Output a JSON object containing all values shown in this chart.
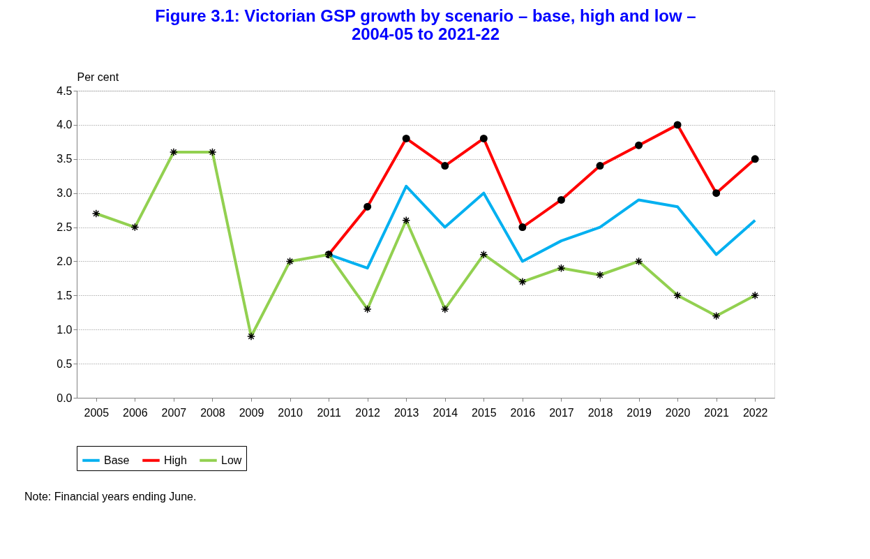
{
  "chart_data": {
    "type": "line",
    "title": "Figure 3.1:  Victorian GSP growth by scenario – base, high and low –\n2004-05 to 2021-22",
    "ylabel": "Per cent",
    "categories": [
      "2005",
      "2006",
      "2007",
      "2008",
      "2009",
      "2010",
      "2011",
      "2012",
      "2013",
      "2014",
      "2015",
      "2016",
      "2017",
      "2018",
      "2019",
      "2020",
      "2021",
      "2022"
    ],
    "series": [
      {
        "name": "Base",
        "color": "#00b0f0",
        "marker": "none",
        "values": [
          null,
          null,
          null,
          null,
          null,
          null,
          2.1,
          1.9,
          3.1,
          2.5,
          3.0,
          2.0,
          2.3,
          2.5,
          2.9,
          2.8,
          2.1,
          2.6
        ]
      },
      {
        "name": "High",
        "color": "#ff0000",
        "marker": "circle",
        "values": [
          null,
          null,
          null,
          null,
          null,
          null,
          2.1,
          2.8,
          3.8,
          3.4,
          3.8,
          2.5,
          2.9,
          3.4,
          3.7,
          4.0,
          3.0,
          3.5
        ]
      },
      {
        "name": "Low",
        "color": "#92d050",
        "marker": "cross",
        "values": [
          2.7,
          2.5,
          3.6,
          3.6,
          0.9,
          2.0,
          2.1,
          1.3,
          2.6,
          1.3,
          2.1,
          1.7,
          1.9,
          1.8,
          2.0,
          1.5,
          1.2,
          1.5
        ]
      }
    ],
    "ylim": [
      0,
      4.5
    ],
    "yticks": [
      {
        "value": 0,
        "label": "0.0"
      },
      0.5,
      {
        "value": 1,
        "label": "1.0"
      },
      1.5,
      {
        "value": 2,
        "label": "2.0"
      },
      2.5,
      {
        "value": 3,
        "label": "3.0"
      },
      3.5,
      {
        "value": 4,
        "label": "4.0"
      },
      4.5
    ],
    "grid": "y",
    "legend": "bottom",
    "annotations": [
      "Note:        Financial years ending June."
    ]
  }
}
